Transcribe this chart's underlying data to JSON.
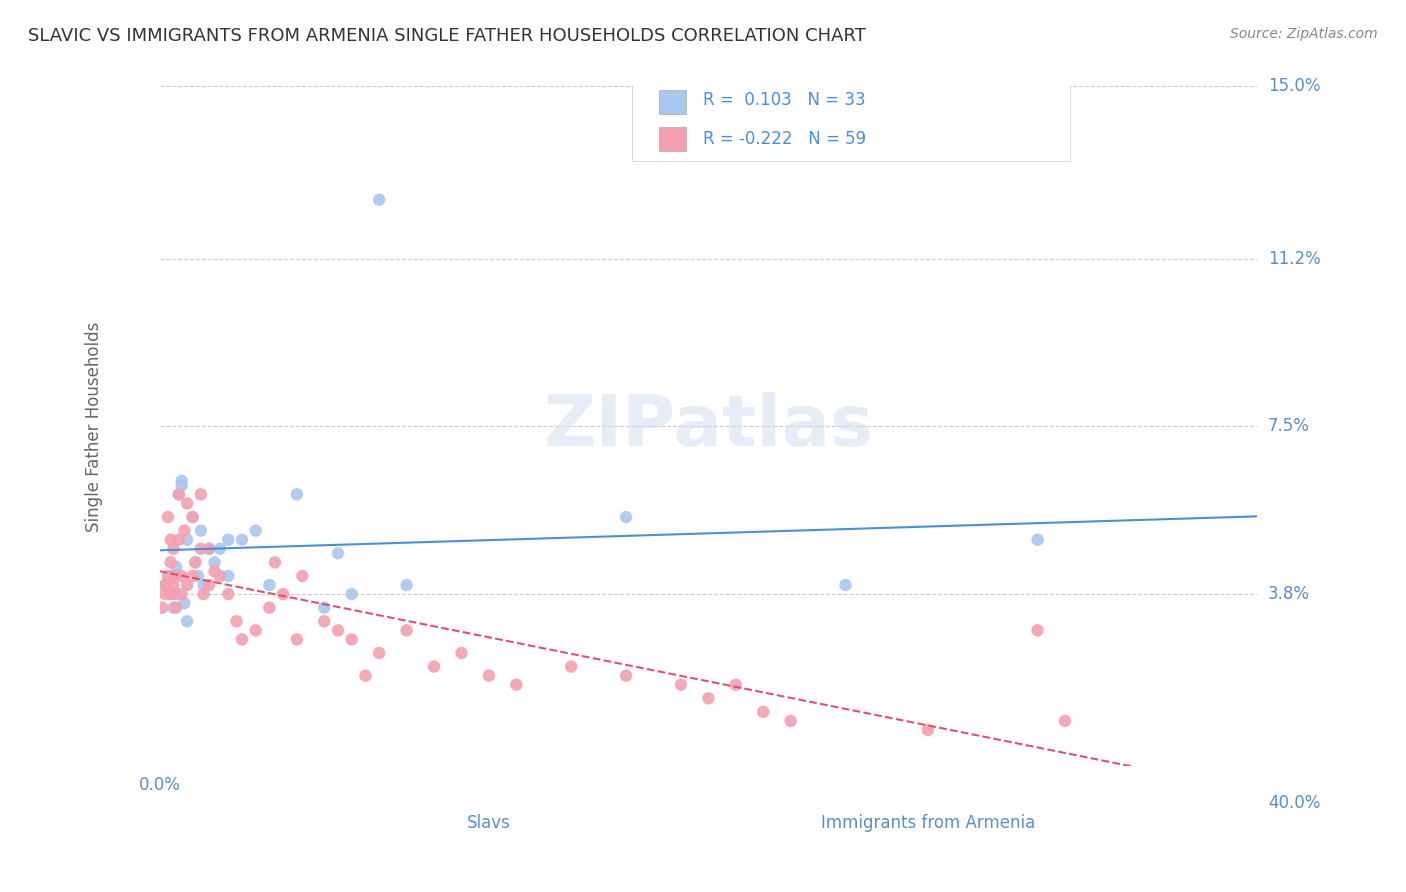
{
  "title": "SLAVIC VS IMMIGRANTS FROM ARMENIA SINGLE FATHER HOUSEHOLDS CORRELATION CHART",
  "source": "Source: ZipAtlas.com",
  "xlabel_slavs": "Slavs",
  "xlabel_armenia": "Immigrants from Armenia",
  "ylabel": "Single Father Households",
  "watermark": "ZIPatlas",
  "xlim": [
    0.0,
    0.4
  ],
  "ylim": [
    0.0,
    0.15
  ],
  "yticks": [
    0.038,
    0.075,
    0.112,
    0.15
  ],
  "ytick_labels": [
    "3.8%",
    "7.5%",
    "11.2%",
    "15.0%"
  ],
  "xticks": [
    0.0,
    0.4
  ],
  "xtick_labels": [
    "0.0%",
    "40.0%"
  ],
  "slavs_R": 0.103,
  "slavs_N": 33,
  "armenia_R": -0.222,
  "armenia_N": 59,
  "slavs_color": "#a8c8f0",
  "armenia_color": "#f4a0b0",
  "line_slavs_color": "#4a90d9",
  "line_armenia_color": "#e05070",
  "grid_color": "#cccccc",
  "title_color": "#333333",
  "axis_label_color": "#5a8fc8",
  "legend_text_color": "#4a90d9",
  "slavs_x": [
    0.002,
    0.005,
    0.005,
    0.006,
    0.006,
    0.007,
    0.008,
    0.008,
    0.009,
    0.01,
    0.01,
    0.012,
    0.013,
    0.014,
    0.015,
    0.016,
    0.018,
    0.02,
    0.022,
    0.025,
    0.025,
    0.03,
    0.035,
    0.04,
    0.05,
    0.06,
    0.065,
    0.07,
    0.08,
    0.09,
    0.17,
    0.25,
    0.32
  ],
  "slavs_y": [
    0.04,
    0.035,
    0.042,
    0.038,
    0.044,
    0.06,
    0.063,
    0.062,
    0.036,
    0.032,
    0.05,
    0.055,
    0.045,
    0.042,
    0.052,
    0.04,
    0.048,
    0.045,
    0.048,
    0.042,
    0.05,
    0.05,
    0.052,
    0.04,
    0.06,
    0.035,
    0.047,
    0.038,
    0.125,
    0.04,
    0.055,
    0.04,
    0.05
  ],
  "armenia_x": [
    0.001,
    0.002,
    0.002,
    0.003,
    0.003,
    0.004,
    0.004,
    0.004,
    0.005,
    0.005,
    0.005,
    0.006,
    0.006,
    0.007,
    0.007,
    0.008,
    0.008,
    0.009,
    0.01,
    0.01,
    0.012,
    0.012,
    0.013,
    0.015,
    0.015,
    0.016,
    0.018,
    0.018,
    0.02,
    0.022,
    0.025,
    0.028,
    0.03,
    0.035,
    0.04,
    0.042,
    0.045,
    0.05,
    0.052,
    0.06,
    0.065,
    0.07,
    0.075,
    0.08,
    0.09,
    0.1,
    0.11,
    0.12,
    0.13,
    0.15,
    0.17,
    0.19,
    0.2,
    0.21,
    0.22,
    0.23,
    0.28,
    0.32,
    0.33
  ],
  "armenia_y": [
    0.035,
    0.04,
    0.038,
    0.042,
    0.055,
    0.038,
    0.045,
    0.05,
    0.038,
    0.04,
    0.048,
    0.042,
    0.035,
    0.05,
    0.06,
    0.042,
    0.038,
    0.052,
    0.04,
    0.058,
    0.042,
    0.055,
    0.045,
    0.048,
    0.06,
    0.038,
    0.048,
    0.04,
    0.043,
    0.042,
    0.038,
    0.032,
    0.028,
    0.03,
    0.035,
    0.045,
    0.038,
    0.028,
    0.042,
    0.032,
    0.03,
    0.028,
    0.02,
    0.025,
    0.03,
    0.022,
    0.025,
    0.02,
    0.018,
    0.022,
    0.02,
    0.018,
    0.015,
    0.018,
    0.012,
    0.01,
    0.008,
    0.03,
    0.01
  ]
}
